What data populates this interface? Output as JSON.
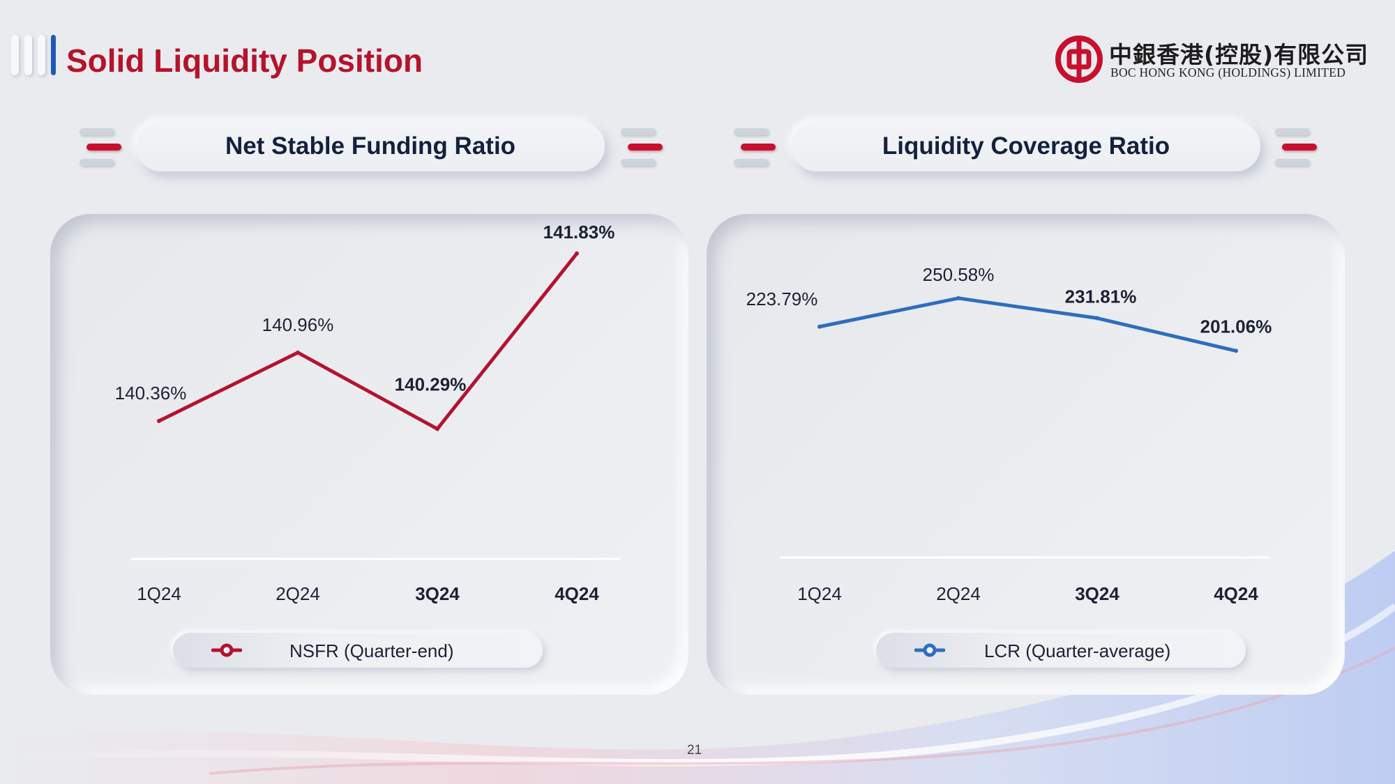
{
  "header": {
    "title": "Solid Liquidity Position",
    "logo_cn": "中銀香港(控股)有限公司",
    "logo_en": "BOC HONG KONG (HOLDINGS) LIMITED"
  },
  "colors": {
    "brand_red": "#c8102e",
    "title_red": "#b5132b",
    "nsfr_line": "#b4122e",
    "lcr_line": "#2f6dbd",
    "accent_blue": "#1e5bb8"
  },
  "nsfr": {
    "section_title": "Net Stable Funding Ratio",
    "legend": "NSFR (Quarter-end)"
  },
  "lcr": {
    "section_title": "Liquidity Coverage Ratio",
    "legend": "LCR (Quarter-average)"
  },
  "page_number": "21",
  "chart_data": [
    {
      "type": "line",
      "title": "Net Stable Funding Ratio",
      "categories": [
        "1Q24",
        "2Q24",
        "3Q24",
        "4Q24"
      ],
      "category_bold": [
        false,
        false,
        true,
        true
      ],
      "series": [
        {
          "name": "NSFR (Quarter-end)",
          "values": [
            140.36,
            140.96,
            140.29,
            141.83
          ],
          "labels": [
            "140.36%",
            "140.96%",
            "140.29%",
            "141.83%"
          ],
          "label_bold": [
            false,
            false,
            true,
            true
          ],
          "color": "#b4122e"
        }
      ],
      "ylim": [
        139.1,
        142.22
      ],
      "legend_position": "bottom",
      "grid": false
    },
    {
      "type": "line",
      "title": "Liquidity Coverage Ratio",
      "categories": [
        "1Q24",
        "2Q24",
        "3Q24",
        "4Q24"
      ],
      "category_bold": [
        false,
        false,
        true,
        true
      ],
      "series": [
        {
          "name": "LCR (Quarter-average)",
          "values": [
            223.79,
            250.58,
            231.81,
            201.06
          ],
          "labels": [
            "223.79%",
            "250.58%",
            "231.81%",
            "201.06%"
          ],
          "label_bold": [
            false,
            false,
            true,
            true
          ],
          "color": "#2f6dbd"
        }
      ],
      "ylim": [
        0,
        282
      ],
      "legend_position": "bottom",
      "grid": false
    }
  ]
}
